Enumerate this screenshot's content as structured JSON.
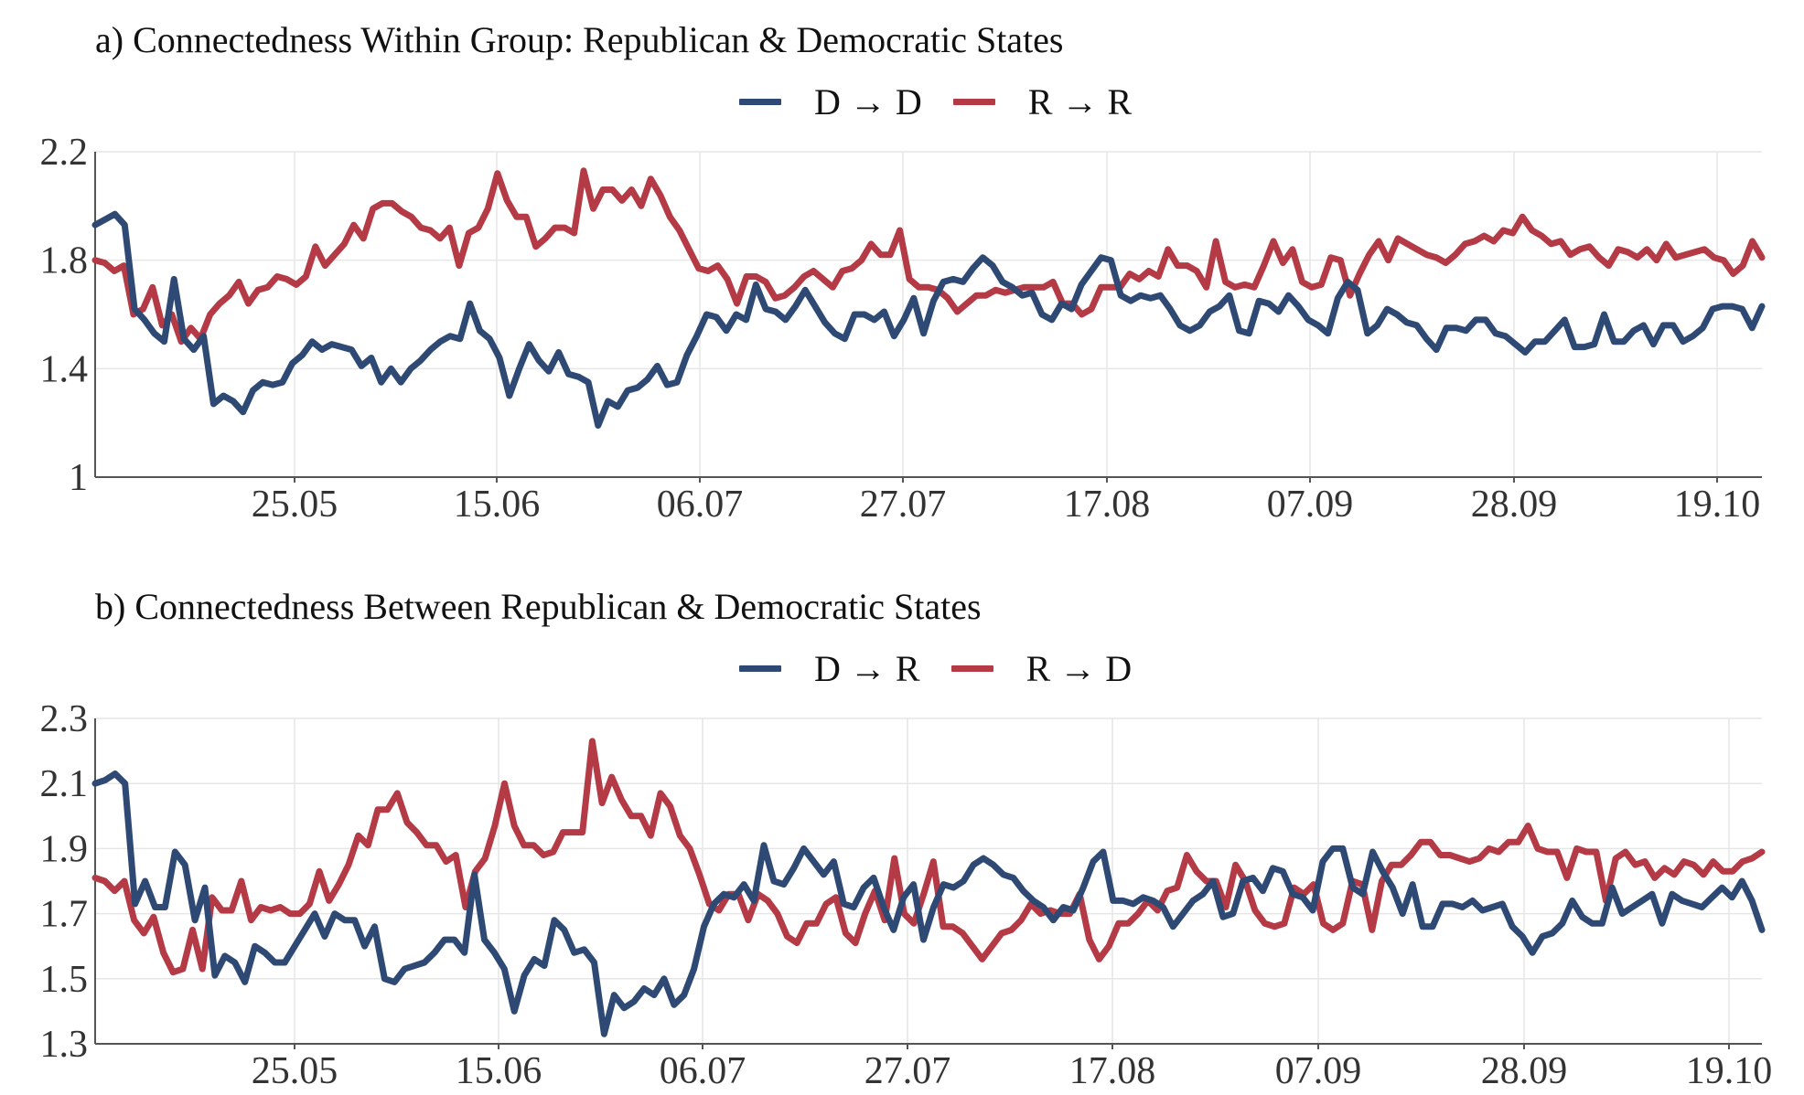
{
  "colors": {
    "blue": "#2e4a74",
    "red": "#b43a46",
    "grid": "#e6e6e6",
    "axis": "#555555"
  },
  "panels": [
    {
      "title": "a) Connectedness Within Group: Republican & Democratic States",
      "legend": [
        {
          "label": "D → D",
          "color": "#2e4a74"
        },
        {
          "label": "R → R",
          "color": "#b43a46"
        }
      ]
    },
    {
      "title": "b) Connectedness Between Republican & Democratic States",
      "legend": [
        {
          "label": "D → R",
          "color": "#2e4a74"
        },
        {
          "label": "R → D",
          "color": "#b43a46"
        }
      ]
    }
  ],
  "chart_data": [
    {
      "type": "line",
      "title": "a) Connectedness Within Group: Republican & Democratic States",
      "x_start": "05.05",
      "x_end": "21.10",
      "x_tick_labels": [
        "25.05",
        "15.06",
        "06.07",
        "27.07",
        "17.08",
        "07.09",
        "28.09",
        "19.10"
      ],
      "y_ticks": [
        1,
        1.4,
        1.8,
        2.2
      ],
      "ylim": [
        1,
        2.2
      ],
      "legend_position": "top",
      "series": [
        {
          "name": "D → D",
          "color": "#2e4a74",
          "values": [
            1.93,
            1.95,
            1.97,
            1.93,
            1.62,
            1.58,
            1.53,
            1.5,
            1.73,
            1.51,
            1.47,
            1.52,
            1.27,
            1.3,
            1.28,
            1.24,
            1.32,
            1.35,
            1.34,
            1.35,
            1.42,
            1.45,
            1.5,
            1.47,
            1.49,
            1.48,
            1.47,
            1.41,
            1.44,
            1.35,
            1.4,
            1.35,
            1.4,
            1.43,
            1.47,
            1.5,
            1.52,
            1.51,
            1.64,
            1.54,
            1.51,
            1.44,
            1.3,
            1.4,
            1.49,
            1.43,
            1.39,
            1.46,
            1.38,
            1.37,
            1.35,
            1.19,
            1.28,
            1.26,
            1.32,
            1.33,
            1.36,
            1.41,
            1.34,
            1.35,
            1.45,
            1.52,
            1.6,
            1.59,
            1.54,
            1.6,
            1.58,
            1.71,
            1.62,
            1.61,
            1.58,
            1.63,
            1.69,
            1.63,
            1.57,
            1.53,
            1.51,
            1.6,
            1.6,
            1.58,
            1.61,
            1.52,
            1.58,
            1.66,
            1.53,
            1.65,
            1.72,
            1.73,
            1.72,
            1.77,
            1.81,
            1.78,
            1.72,
            1.7,
            1.67,
            1.68,
            1.6,
            1.58,
            1.64,
            1.62,
            1.71,
            1.76,
            1.81,
            1.8,
            1.67,
            1.65,
            1.67,
            1.66,
            1.67,
            1.62,
            1.56,
            1.54,
            1.56,
            1.61,
            1.63,
            1.67,
            1.54,
            1.53,
            1.65,
            1.64,
            1.61,
            1.67,
            1.63,
            1.58,
            1.56,
            1.53,
            1.66,
            1.72,
            1.69,
            1.53,
            1.56,
            1.62,
            1.6,
            1.57,
            1.56,
            1.51,
            1.47,
            1.55,
            1.55,
            1.54,
            1.58,
            1.58,
            1.53,
            1.52,
            1.49,
            1.46,
            1.5,
            1.5,
            1.54,
            1.58,
            1.48,
            1.48,
            1.49,
            1.6,
            1.5,
            1.5,
            1.54,
            1.56,
            1.49,
            1.56,
            1.56,
            1.5,
            1.52,
            1.55,
            1.62,
            1.63,
            1.63,
            1.62,
            1.55,
            1.63
          ]
        },
        {
          "name": "R → R",
          "color": "#b43a46",
          "values": [
            1.8,
            1.79,
            1.76,
            1.78,
            1.6,
            1.62,
            1.7,
            1.56,
            1.6,
            1.5,
            1.55,
            1.51,
            1.6,
            1.64,
            1.67,
            1.72,
            1.64,
            1.69,
            1.7,
            1.74,
            1.73,
            1.71,
            1.74,
            1.85,
            1.78,
            1.82,
            1.86,
            1.93,
            1.88,
            1.99,
            2.01,
            2.01,
            1.98,
            1.96,
            1.92,
            1.91,
            1.88,
            1.92,
            1.78,
            1.9,
            1.92,
            1.99,
            2.12,
            2.02,
            1.96,
            1.96,
            1.85,
            1.88,
            1.92,
            1.92,
            1.9,
            2.13,
            1.99,
            2.06,
            2.06,
            2.02,
            2.06,
            2.0,
            2.1,
            2.04,
            1.96,
            1.91,
            1.84,
            1.77,
            1.76,
            1.78,
            1.73,
            1.64,
            1.74,
            1.74,
            1.72,
            1.66,
            1.67,
            1.7,
            1.74,
            1.76,
            1.73,
            1.7,
            1.76,
            1.77,
            1.8,
            1.86,
            1.82,
            1.82,
            1.91,
            1.73,
            1.7,
            1.7,
            1.69,
            1.66,
            1.61,
            1.64,
            1.67,
            1.67,
            1.69,
            1.68,
            1.69,
            1.7,
            1.7,
            1.7,
            1.72,
            1.64,
            1.64,
            1.6,
            1.62,
            1.7,
            1.7,
            1.7,
            1.75,
            1.73,
            1.76,
            1.74,
            1.84,
            1.78,
            1.78,
            1.76,
            1.7,
            1.87,
            1.72,
            1.7,
            1.71,
            1.7,
            1.78,
            1.87,
            1.79,
            1.84,
            1.72,
            1.7,
            1.71,
            1.81,
            1.8,
            1.67,
            1.75,
            1.82,
            1.87,
            1.8,
            1.88,
            1.86,
            1.84,
            1.82,
            1.81,
            1.79,
            1.82,
            1.86,
            1.87,
            1.89,
            1.87,
            1.91,
            1.9,
            1.96,
            1.91,
            1.89,
            1.86,
            1.87,
            1.82,
            1.84,
            1.85,
            1.81,
            1.78,
            1.84,
            1.83,
            1.81,
            1.84,
            1.8,
            1.86,
            1.81,
            1.82,
            1.83,
            1.84,
            1.81,
            1.8,
            1.75,
            1.78,
            1.87,
            1.81
          ]
        }
      ]
    },
    {
      "type": "line",
      "title": "b) Connectedness Between Republican & Democratic States",
      "x_start": "05.05",
      "x_end": "21.10",
      "x_tick_labels": [
        "25.05",
        "15.06",
        "06.07",
        "27.07",
        "17.08",
        "07.09",
        "28.09",
        "19.10"
      ],
      "y_ticks": [
        1.3,
        1.5,
        1.7,
        1.9,
        2.1,
        2.3
      ],
      "ylim": [
        1.3,
        2.3
      ],
      "legend_position": "top",
      "series": [
        {
          "name": "D → R",
          "color": "#2e4a74",
          "values": [
            2.1,
            2.11,
            2.13,
            2.1,
            1.73,
            1.8,
            1.72,
            1.72,
            1.89,
            1.85,
            1.68,
            1.78,
            1.51,
            1.57,
            1.55,
            1.49,
            1.6,
            1.58,
            1.55,
            1.55,
            1.6,
            1.65,
            1.7,
            1.63,
            1.7,
            1.68,
            1.68,
            1.6,
            1.66,
            1.5,
            1.49,
            1.53,
            1.54,
            1.55,
            1.58,
            1.62,
            1.62,
            1.58,
            1.82,
            1.62,
            1.58,
            1.53,
            1.4,
            1.51,
            1.56,
            1.54,
            1.68,
            1.65,
            1.58,
            1.59,
            1.55,
            1.33,
            1.45,
            1.41,
            1.43,
            1.47,
            1.45,
            1.5,
            1.42,
            1.45,
            1.53,
            1.66,
            1.73,
            1.76,
            1.75,
            1.79,
            1.74,
            1.91,
            1.8,
            1.79,
            1.84,
            1.9,
            1.86,
            1.82,
            1.86,
            1.73,
            1.72,
            1.78,
            1.81,
            1.72,
            1.65,
            1.75,
            1.79,
            1.62,
            1.72,
            1.79,
            1.78,
            1.8,
            1.85,
            1.87,
            1.85,
            1.82,
            1.81,
            1.77,
            1.74,
            1.72,
            1.68,
            1.72,
            1.71,
            1.78,
            1.86,
            1.89,
            1.74,
            1.74,
            1.73,
            1.75,
            1.74,
            1.72,
            1.66,
            1.7,
            1.74,
            1.76,
            1.8,
            1.69,
            1.7,
            1.8,
            1.81,
            1.77,
            1.84,
            1.83,
            1.76,
            1.75,
            1.71,
            1.86,
            1.9,
            1.9,
            1.78,
            1.76,
            1.89,
            1.83,
            1.78,
            1.7,
            1.79,
            1.66,
            1.66,
            1.73,
            1.73,
            1.72,
            1.74,
            1.71,
            1.72,
            1.73,
            1.66,
            1.63,
            1.58,
            1.63,
            1.64,
            1.67,
            1.74,
            1.69,
            1.67,
            1.67,
            1.78,
            1.7,
            1.72,
            1.74,
            1.76,
            1.67,
            1.76,
            1.74,
            1.73,
            1.72,
            1.75,
            1.78,
            1.75,
            1.8,
            1.74,
            1.65
          ]
        },
        {
          "name": "R → D",
          "color": "#b43a46",
          "values": [
            1.81,
            1.8,
            1.77,
            1.8,
            1.68,
            1.64,
            1.69,
            1.58,
            1.52,
            1.53,
            1.65,
            1.53,
            1.75,
            1.71,
            1.71,
            1.8,
            1.68,
            1.72,
            1.71,
            1.72,
            1.7,
            1.7,
            1.73,
            1.83,
            1.74,
            1.79,
            1.85,
            1.94,
            1.91,
            2.02,
            2.02,
            2.07,
            1.98,
            1.95,
            1.91,
            1.91,
            1.86,
            1.88,
            1.72,
            1.83,
            1.87,
            1.97,
            2.1,
            1.97,
            1.91,
            1.91,
            1.88,
            1.89,
            1.95,
            1.95,
            1.95,
            2.23,
            2.04,
            2.12,
            2.05,
            2.0,
            2.0,
            1.94,
            2.07,
            2.03,
            1.94,
            1.9,
            1.82,
            1.73,
            1.71,
            1.76,
            1.76,
            1.68,
            1.76,
            1.74,
            1.7,
            1.63,
            1.61,
            1.67,
            1.67,
            1.73,
            1.75,
            1.64,
            1.61,
            1.7,
            1.77,
            1.68,
            1.87,
            1.7,
            1.67,
            1.76,
            1.86,
            1.66,
            1.66,
            1.64,
            1.6,
            1.56,
            1.6,
            1.64,
            1.65,
            1.68,
            1.73,
            1.7,
            1.71,
            1.7,
            1.7,
            1.76,
            1.62,
            1.56,
            1.6,
            1.67,
            1.67,
            1.7,
            1.74,
            1.71,
            1.77,
            1.78,
            1.88,
            1.83,
            1.8,
            1.8,
            1.72,
            1.85,
            1.8,
            1.71,
            1.67,
            1.66,
            1.67,
            1.78,
            1.76,
            1.79,
            1.67,
            1.65,
            1.67,
            1.8,
            1.79,
            1.65,
            1.8,
            1.85,
            1.85,
            1.88,
            1.92,
            1.92,
            1.88,
            1.88,
            1.87,
            1.86,
            1.87,
            1.9,
            1.89,
            1.92,
            1.92,
            1.97,
            1.9,
            1.89,
            1.89,
            1.81,
            1.9,
            1.89,
            1.89,
            1.74,
            1.87,
            1.89,
            1.85,
            1.86,
            1.81,
            1.84,
            1.82,
            1.86,
            1.85,
            1.82,
            1.86,
            1.83,
            1.83,
            1.86,
            1.87,
            1.89
          ]
        }
      ]
    }
  ]
}
